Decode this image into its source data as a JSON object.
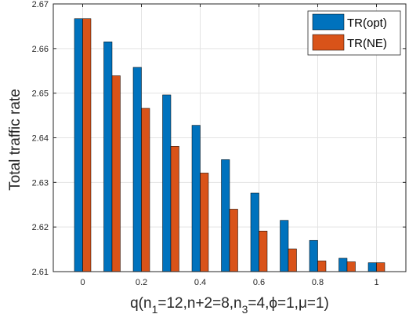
{
  "chart_data": {
    "type": "bar",
    "title": "",
    "xlabel": "q(n_1=12,n+2=8,n_3=4,φ=1,μ=1)",
    "xlabel_parts": {
      "pre": "q(n",
      "s1": "1",
      "mid1": "=12,n+2=8,n",
      "s3": "3",
      "post": "=4,ϕ=1,μ=1)"
    },
    "ylabel": "Total traffic rate",
    "categories": [
      0,
      0.1,
      0.2,
      0.3,
      0.4,
      0.5,
      0.6,
      0.7,
      0.8,
      0.9,
      1
    ],
    "x_ticks": [
      "0",
      "0.2",
      "0.4",
      "0.6",
      "0.8",
      "1"
    ],
    "x_tick_values": [
      0,
      0.2,
      0.4,
      0.6,
      0.8,
      1
    ],
    "y_ticks": [
      "2.61",
      "2.62",
      "2.63",
      "2.64",
      "2.65",
      "2.66",
      "2.67"
    ],
    "y_tick_values": [
      2.61,
      2.62,
      2.63,
      2.64,
      2.65,
      2.66,
      2.67
    ],
    "ylim": [
      2.61,
      2.67
    ],
    "xlim": [
      -0.1,
      1.1
    ],
    "grid": true,
    "legend_position": "top-right",
    "series": [
      {
        "name": "TR(opt)",
        "color": "#0072BD",
        "values": [
          2.6667,
          2.6615,
          2.6558,
          2.6496,
          2.6428,
          2.6351,
          2.6276,
          2.6215,
          2.617,
          2.613,
          2.612
        ]
      },
      {
        "name": "TR(NE)",
        "color": "#D95319",
        "values": [
          2.6667,
          2.6539,
          2.6466,
          2.6381,
          2.6321,
          2.624,
          2.6191,
          2.6151,
          2.6124,
          2.6122,
          2.612
        ]
      }
    ]
  }
}
